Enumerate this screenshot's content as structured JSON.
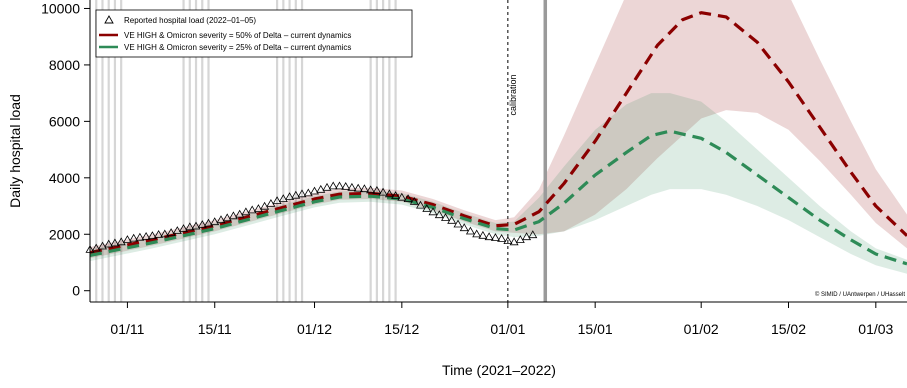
{
  "chart_data": {
    "type": "line",
    "xlabel": "Time (2021–2022)",
    "ylabel": "Daily hospital load",
    "x_ticks": [
      "2021-11-01",
      "2021-11-15",
      "2021-12-01",
      "2021-12-15",
      "2022-01-01",
      "2022-01-15",
      "2022-02-01",
      "2022-02-15",
      "2022-03-01"
    ],
    "x_tick_labels": [
      "01/11",
      "15/11",
      "01/12",
      "15/12",
      "01/01",
      "15/01",
      "01/02",
      "15/02",
      "01/03"
    ],
    "xlim": [
      "2021-10-26",
      "2022-03-06"
    ],
    "y_ticks": [
      0,
      2000,
      4000,
      6000,
      8000,
      10000
    ],
    "ylim": [
      -400,
      10300
    ],
    "calibration_label": "calibration",
    "calibration_date": "2022-01-01",
    "report_date": "2022-01-07",
    "copyright": "© SIMID / UAntwerpen / UHasselt",
    "weekend_bands": [
      [
        "2021-10-27",
        "2021-10-31"
      ],
      [
        "2021-11-10",
        "2021-11-14"
      ],
      [
        "2021-11-25",
        "2021-11-29"
      ],
      [
        "2021-12-10",
        "2021-12-14"
      ]
    ],
    "legend": [
      {
        "label": "Reported hospital load (2022–01–05)",
        "kind": "triangle",
        "color": "#000000"
      },
      {
        "label": "VE HIGH & Omicron severity = 50% of Delta – current dynamics",
        "kind": "line",
        "color": "#8b0000"
      },
      {
        "label": "VE HIGH & Omicron severity = 25% of Delta – current dynamics",
        "kind": "line",
        "color": "#2e8b57"
      }
    ],
    "series": [
      {
        "name": "Reported hospital load (2022–01–05)",
        "kind": "points",
        "color": "#000000",
        "x": [
          "2021-10-26",
          "2021-10-27",
          "2021-10-28",
          "2021-10-29",
          "2021-10-30",
          "2021-10-31",
          "2021-11-01",
          "2021-11-02",
          "2021-11-03",
          "2021-11-04",
          "2021-11-05",
          "2021-11-06",
          "2021-11-07",
          "2021-11-08",
          "2021-11-09",
          "2021-11-10",
          "2021-11-11",
          "2021-11-12",
          "2021-11-13",
          "2021-11-14",
          "2021-11-15",
          "2021-11-16",
          "2021-11-17",
          "2021-11-18",
          "2021-11-19",
          "2021-11-20",
          "2021-11-21",
          "2021-11-22",
          "2021-11-23",
          "2021-11-24",
          "2021-11-25",
          "2021-11-26",
          "2021-11-27",
          "2021-11-28",
          "2021-11-29",
          "2021-11-30",
          "2021-12-01",
          "2021-12-02",
          "2021-12-03",
          "2021-12-04",
          "2021-12-05",
          "2021-12-06",
          "2021-12-07",
          "2021-12-08",
          "2021-12-09",
          "2021-12-10",
          "2021-12-11",
          "2021-12-12",
          "2021-12-13",
          "2021-12-14",
          "2021-12-15",
          "2021-12-16",
          "2021-12-17",
          "2021-12-18",
          "2021-12-19",
          "2021-12-20",
          "2021-12-21",
          "2021-12-22",
          "2021-12-23",
          "2021-12-24",
          "2021-12-25",
          "2021-12-26",
          "2021-12-27",
          "2021-12-28",
          "2021-12-29",
          "2021-12-30",
          "2021-12-31",
          "2022-01-01",
          "2022-01-02",
          "2022-01-03",
          "2022-01-04",
          "2022-01-05"
        ],
        "y": [
          1450,
          1500,
          1570,
          1640,
          1680,
          1720,
          1800,
          1850,
          1880,
          1910,
          1940,
          1980,
          2000,
          2050,
          2120,
          2190,
          2250,
          2280,
          2330,
          2380,
          2430,
          2500,
          2570,
          2640,
          2700,
          2780,
          2850,
          2900,
          2980,
          3080,
          3180,
          3250,
          3320,
          3370,
          3420,
          3450,
          3520,
          3580,
          3650,
          3700,
          3700,
          3680,
          3650,
          3620,
          3600,
          3560,
          3540,
          3480,
          3420,
          3360,
          3300,
          3250,
          3150,
          3020,
          2900,
          2780,
          2680,
          2580,
          2480,
          2350,
          2220,
          2100,
          2000,
          1950,
          1900,
          1870,
          1840,
          1760,
          1720,
          1800,
          1900,
          1970
        ]
      },
      {
        "name": "VE HIGH & Omicron severity = 50% of Delta – current dynamics",
        "kind": "line",
        "color": "#8b0000",
        "x": [
          "2021-10-26",
          "2021-11-05",
          "2021-11-15",
          "2021-11-25",
          "2021-12-01",
          "2021-12-05",
          "2021-12-10",
          "2021-12-15",
          "2021-12-20",
          "2021-12-25",
          "2021-12-30",
          "2022-01-02",
          "2022-01-06",
          "2022-01-10",
          "2022-01-15",
          "2022-01-20",
          "2022-01-25",
          "2022-01-29",
          "2022-02-01",
          "2022-02-05",
          "2022-02-10",
          "2022-02-15",
          "2022-02-20",
          "2022-02-25",
          "2022-03-01",
          "2022-03-06"
        ],
        "y": [
          1350,
          1800,
          2300,
          2900,
          3250,
          3420,
          3450,
          3350,
          3050,
          2650,
          2300,
          2350,
          2800,
          3800,
          5300,
          7000,
          8700,
          9600,
          9850,
          9700,
          8800,
          7400,
          5800,
          4200,
          3000,
          1950
        ],
        "band_lower": [
          1150,
          1600,
          2100,
          2700,
          3050,
          3220,
          3250,
          3150,
          2850,
          2450,
          2100,
          2050,
          2000,
          2100,
          2700,
          3600,
          4700,
          5500,
          6100,
          6400,
          6300,
          5700,
          4600,
          3400,
          2400,
          1500
        ],
        "band_upper": [
          1550,
          2000,
          2500,
          3100,
          3450,
          3620,
          3650,
          3550,
          3250,
          2850,
          2500,
          2600,
          3600,
          5500,
          8000,
          10500,
          13000,
          14500,
          15000,
          14500,
          12800,
          10500,
          8200,
          6000,
          4300,
          2700
        ]
      },
      {
        "name": "VE HIGH & Omicron severity = 25% of Delta – current dynamics",
        "kind": "line",
        "color": "#2e8b57",
        "x": [
          "2021-10-26",
          "2021-11-05",
          "2021-11-15",
          "2021-11-25",
          "2021-12-01",
          "2021-12-05",
          "2021-12-10",
          "2021-12-15",
          "2021-12-20",
          "2021-12-25",
          "2021-12-30",
          "2022-01-02",
          "2022-01-06",
          "2022-01-10",
          "2022-01-15",
          "2022-01-20",
          "2022-01-24",
          "2022-01-27",
          "2022-02-01",
          "2022-02-05",
          "2022-02-10",
          "2022-02-15",
          "2022-02-20",
          "2022-02-25",
          "2022-03-01",
          "2022-03-06"
        ],
        "y": [
          1250,
          1700,
          2200,
          2800,
          3150,
          3320,
          3350,
          3250,
          2950,
          2550,
          2200,
          2150,
          2450,
          3100,
          4100,
          4900,
          5500,
          5650,
          5400,
          4900,
          4100,
          3300,
          2500,
          1800,
          1300,
          950
        ],
        "band_lower": [
          1050,
          1500,
          2000,
          2600,
          2950,
          3120,
          3150,
          3050,
          2750,
          2350,
          2000,
          1900,
          1950,
          2100,
          2500,
          3000,
          3400,
          3600,
          3600,
          3400,
          3000,
          2500,
          1900,
          1300,
          900,
          600
        ],
        "band_upper": [
          1450,
          1900,
          2400,
          3000,
          3350,
          3520,
          3550,
          3450,
          3150,
          2750,
          2400,
          2450,
          3300,
          4400,
          5700,
          6600,
          7000,
          7000,
          6700,
          6000,
          5000,
          4000,
          3000,
          2100,
          1500,
          1100
        ]
      }
    ]
  }
}
